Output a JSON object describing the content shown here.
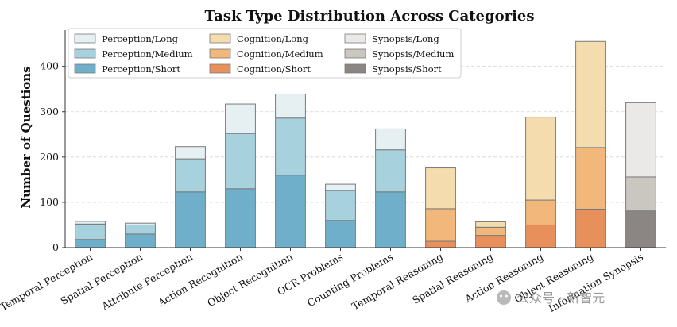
{
  "chart_data": {
    "type": "bar",
    "stacked": true,
    "title": "Task Type Distribution Across Categories",
    "xlabel": "",
    "ylabel": "Number of Questions",
    "ylim": [
      0,
      480
    ],
    "yticks": [
      0,
      100,
      200,
      300,
      400
    ],
    "grid": true,
    "legend_position": "top-left",
    "categories": [
      "Temporal Perception",
      "Spatial Perception",
      "Attribute Perception",
      "Action Recognition",
      "Object Recognition",
      "OCR Problems",
      "Counting Problems",
      "Temporal Reasoning",
      "Spatial Reasoning",
      "Action Reasoning",
      "Object Reasoning",
      "Information Synopsis"
    ],
    "series": [
      {
        "name": "Perception/Short",
        "color": "#6fafca",
        "values": [
          18,
          30,
          123,
          130,
          160,
          60,
          123,
          0,
          0,
          0,
          0,
          0
        ]
      },
      {
        "name": "Perception/Medium",
        "color": "#a8d1de",
        "values": [
          34,
          20,
          73,
          122,
          126,
          66,
          93,
          0,
          0,
          0,
          0,
          0
        ]
      },
      {
        "name": "Perception/Long",
        "color": "#e6f0f3",
        "values": [
          6,
          4,
          27,
          65,
          53,
          14,
          46,
          0,
          0,
          0,
          0,
          0
        ]
      },
      {
        "name": "Cognition/Short",
        "color": "#e8905c",
        "values": [
          0,
          0,
          0,
          0,
          0,
          0,
          0,
          14,
          27,
          50,
          85,
          0
        ]
      },
      {
        "name": "Cognition/Medium",
        "color": "#f1b77b",
        "values": [
          0,
          0,
          0,
          0,
          0,
          0,
          0,
          72,
          18,
          55,
          136,
          0
        ]
      },
      {
        "name": "Cognition/Long",
        "color": "#f5dcae",
        "values": [
          0,
          0,
          0,
          0,
          0,
          0,
          0,
          90,
          12,
          183,
          234,
          0
        ]
      },
      {
        "name": "Synopsis/Short",
        "color": "#8b8683",
        "values": [
          0,
          0,
          0,
          0,
          0,
          0,
          0,
          0,
          0,
          0,
          0,
          81
        ]
      },
      {
        "name": "Synopsis/Medium",
        "color": "#cac7c1",
        "values": [
          0,
          0,
          0,
          0,
          0,
          0,
          0,
          0,
          0,
          0,
          0,
          75
        ]
      },
      {
        "name": "Synopsis/Long",
        "color": "#ebe8e8",
        "values": [
          0,
          0,
          0,
          0,
          0,
          0,
          0,
          0,
          0,
          0,
          0,
          164
        ]
      }
    ],
    "legend_order": [
      "Perception/Long",
      "Perception/Medium",
      "Perception/Short",
      "Cognition/Long",
      "Cognition/Medium",
      "Cognition/Short",
      "Synopsis/Long",
      "Synopsis/Medium",
      "Synopsis/Short"
    ]
  },
  "watermark": {
    "text": "公众号 · 新智元",
    "icon": "wechat-icon"
  }
}
